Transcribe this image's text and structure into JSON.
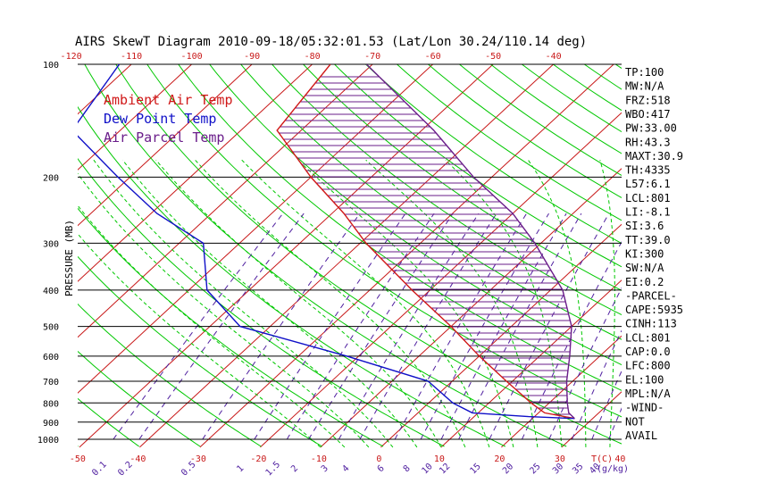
{
  "colors": {
    "ambient": "#d01818",
    "dewpoint": "#1010c8",
    "parcel": "#6a1d8a",
    "isotherm": "#c81818",
    "dry_adiabat": "#00c800",
    "moist_adiabat": "#00c800",
    "mixing_ratio": "#5020a0",
    "isobar": "#000000",
    "hatch": "#6a1d8a"
  },
  "chart_data": {
    "type": "skew-t",
    "title": "AIRS SkewT Diagram 2010-09-18/05:32:01.53 (Lat/Lon 30.24/110.14 deg)",
    "ylabel": "PRESSURE (MB)",
    "xlabel_unit": "T(C)",
    "mixing_unit": "(g/kg)",
    "pressure_ticks": [
      {
        "p": 100,
        "label": "100"
      },
      {
        "p": 200,
        "label": "200"
      },
      {
        "p": 300,
        "label": "300"
      },
      {
        "p": 400,
        "label": "400"
      },
      {
        "p": 500,
        "label": "500"
      },
      {
        "p": 600,
        "label": "600"
      },
      {
        "p": 700,
        "label": "700"
      },
      {
        "p": 800,
        "label": "800"
      },
      {
        "p": 900,
        "label": "900"
      },
      {
        "p": 1000,
        "label": "1000"
      }
    ],
    "bottom_temp_ticks": [
      {
        "t": -50,
        "label": "-50"
      },
      {
        "t": -40,
        "label": "-40"
      },
      {
        "t": -30,
        "label": "-30"
      },
      {
        "t": -20,
        "label": "-20"
      },
      {
        "t": -10,
        "label": "-10"
      },
      {
        "t": 0,
        "label": "0"
      },
      {
        "t": 10,
        "label": "10"
      },
      {
        "t": 20,
        "label": "20"
      },
      {
        "t": 30,
        "label": "30"
      },
      {
        "t": 40,
        "label": "40"
      }
    ],
    "top_temp_ticks": [
      {
        "t": -120,
        "label": "-120"
      },
      {
        "t": -110,
        "label": "-110"
      },
      {
        "t": -100,
        "label": "-100"
      },
      {
        "t": -90,
        "label": "-90"
      },
      {
        "t": -80,
        "label": "-80"
      },
      {
        "t": -70,
        "label": "-70"
      },
      {
        "t": -60,
        "label": "-60"
      },
      {
        "t": -50,
        "label": "-50"
      },
      {
        "t": -40,
        "label": "-40"
      }
    ],
    "mixing_ratio_ticks": [
      {
        "t": -45.8,
        "label": "0.1"
      },
      {
        "t": -41.5,
        "label": "0.2"
      },
      {
        "t": -31.0,
        "label": "0.5"
      },
      {
        "t": -22.4,
        "label": "1"
      },
      {
        "t": -17.0,
        "label": "1.5"
      },
      {
        "t": -13.4,
        "label": "2"
      },
      {
        "t": -8.4,
        "label": "3"
      },
      {
        "t": -4.9,
        "label": "4"
      },
      {
        "t": 0.9,
        "label": "6"
      },
      {
        "t": 5.2,
        "label": "8"
      },
      {
        "t": 8.6,
        "label": "10"
      },
      {
        "t": 11.5,
        "label": "12"
      },
      {
        "t": 16.6,
        "label": "15"
      },
      {
        "t": 22.0,
        "label": "20"
      },
      {
        "t": 26.5,
        "label": "25"
      },
      {
        "t": 30.3,
        "label": "30"
      },
      {
        "t": 33.6,
        "label": "35"
      },
      {
        "t": 36.4,
        "label": "40"
      }
    ],
    "legend": [
      {
        "label": "Ambient Air Temp",
        "series": "ambient"
      },
      {
        "label": "Dew Point Temp",
        "series": "dewpoint"
      },
      {
        "label": "Air Parcel Temp",
        "series": "parcel"
      }
    ],
    "series": [
      {
        "name": "ambient",
        "points": [
          {
            "p": 100,
            "t": -77
          },
          {
            "p": 150,
            "t": -74
          },
          {
            "p": 200,
            "t": -60
          },
          {
            "p": 250,
            "t": -48
          },
          {
            "p": 300,
            "t": -39
          },
          {
            "p": 400,
            "t": -23
          },
          {
            "p": 500,
            "t": -10
          },
          {
            "p": 600,
            "t": 0
          },
          {
            "p": 700,
            "t": 9
          },
          {
            "p": 800,
            "t": 17
          },
          {
            "p": 850,
            "t": 21
          },
          {
            "p": 880,
            "t": 27
          }
        ]
      },
      {
        "name": "dewpoint",
        "points": [
          {
            "p": 100,
            "t": -112
          },
          {
            "p": 150,
            "t": -108
          },
          {
            "p": 200,
            "t": -92
          },
          {
            "p": 250,
            "t": -79
          },
          {
            "p": 300,
            "t": -66
          },
          {
            "p": 400,
            "t": -57
          },
          {
            "p": 500,
            "t": -45
          },
          {
            "p": 600,
            "t": -22
          },
          {
            "p": 700,
            "t": -4
          },
          {
            "p": 800,
            "t": 4
          },
          {
            "p": 850,
            "t": 9
          },
          {
            "p": 870,
            "t": 19
          },
          {
            "p": 880,
            "t": 27
          }
        ]
      },
      {
        "name": "parcel",
        "points": [
          {
            "p": 100,
            "t": -71
          },
          {
            "p": 150,
            "t": -48
          },
          {
            "p": 200,
            "t": -33
          },
          {
            "p": 250,
            "t": -20
          },
          {
            "p": 300,
            "t": -11
          },
          {
            "p": 400,
            "t": 2
          },
          {
            "p": 500,
            "t": 10
          },
          {
            "p": 600,
            "t": 15
          },
          {
            "p": 700,
            "t": 19
          },
          {
            "p": 800,
            "t": 23
          },
          {
            "p": 850,
            "t": 25
          },
          {
            "p": 880,
            "t": 27
          }
        ]
      }
    ],
    "indices": [
      "TP:100",
      "MW:N/A",
      "FRZ:518",
      "WBO:417",
      "PW:33.00",
      "RH:43.3",
      "MAXT:30.9",
      "TH:4335",
      "L57:6.1",
      "LCL:801",
      "LI:-8.1",
      "SI:3.6",
      "TT:39.0",
      "KI:300",
      "SW:N/A",
      "EI:0.2",
      "-PARCEL-",
      "CAPE:5935",
      "CINH:113",
      "LCL:801",
      "CAP:0.0",
      "LFC:800",
      "EL:100",
      "MPL:N/A",
      "-WIND-",
      "NOT",
      "AVAIL"
    ]
  }
}
